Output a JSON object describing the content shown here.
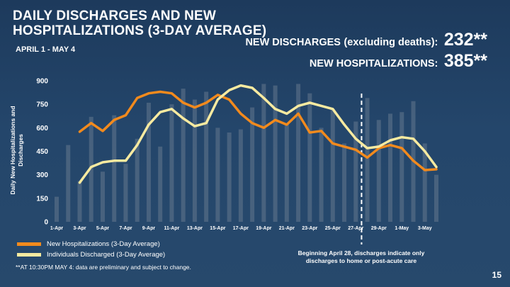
{
  "header": {
    "title": "DAILY DISCHARGES AND NEW HOSPITALIZATIONS (3-DAY AVERAGE)",
    "date_range": "APRIL 1 - MAY 4"
  },
  "stats": {
    "discharges_label": "NEW DISCHARGES",
    "discharges_qualifier": "(excluding deaths):",
    "discharges_value": "232**",
    "hospitalizations_label": "NEW HOSPITALIZATIONS:",
    "hospitalizations_value": "385**"
  },
  "footnote": "**AT 10:30PM MAY 4: data are preliminary and subject to change.",
  "annotation": "Beginning April 28, discharges indicate only discharges to home or post-acute care",
  "page_number": "15",
  "colors": {
    "orange": "#f28a1d",
    "yellow": "#f7eaa0",
    "bars": "#8a96a4"
  },
  "chart_data": {
    "type": "line",
    "title": "DAILY DISCHARGES AND NEW HOSPITALIZATIONS (3-DAY AVERAGE)",
    "xlabel": "",
    "ylabel": "Daily New Hospitalizations and Discharges",
    "ylim": [
      0,
      900
    ],
    "yticks": [
      0,
      150,
      300,
      450,
      600,
      750,
      900
    ],
    "xtick_labels": [
      "1-Apr",
      "3-Apr",
      "5-Apr",
      "7-Apr",
      "9-Apr",
      "11-Apr",
      "13-Apr",
      "15-Apr",
      "17-Apr",
      "19-Apr",
      "21-Apr",
      "23-Apr",
      "25-Apr",
      "27-Apr",
      "29-Apr",
      "1-May",
      "3-May"
    ],
    "x": [
      "1-Apr",
      "2-Apr",
      "3-Apr",
      "4-Apr",
      "5-Apr",
      "6-Apr",
      "7-Apr",
      "8-Apr",
      "9-Apr",
      "10-Apr",
      "11-Apr",
      "12-Apr",
      "13-Apr",
      "14-Apr",
      "15-Apr",
      "16-Apr",
      "17-Apr",
      "18-Apr",
      "19-Apr",
      "20-Apr",
      "21-Apr",
      "22-Apr",
      "23-Apr",
      "24-Apr",
      "25-Apr",
      "26-Apr",
      "27-Apr",
      "28-Apr",
      "29-Apr",
      "30-Apr",
      "1-May",
      "2-May",
      "3-May",
      "4-May"
    ],
    "series": [
      {
        "name": "New Hospitalizations (3-Day Average)",
        "kind": "line",
        "color": "#f28a1d",
        "values": [
          null,
          null,
          575,
          630,
          580,
          650,
          680,
          790,
          820,
          830,
          820,
          760,
          730,
          760,
          810,
          780,
          690,
          630,
          600,
          650,
          620,
          690,
          570,
          580,
          500,
          480,
          460,
          410,
          470,
          490,
          470,
          390,
          330,
          335
        ]
      },
      {
        "name": "Individuals Discharged (3-Day Average)",
        "kind": "line",
        "color": "#f7eaa0",
        "values": [
          null,
          null,
          250,
          350,
          380,
          390,
          390,
          490,
          620,
          700,
          720,
          660,
          610,
          630,
          780,
          840,
          870,
          855,
          790,
          720,
          690,
          740,
          760,
          740,
          720,
          620,
          530,
          470,
          480,
          520,
          540,
          530,
          450,
          350
        ]
      },
      {
        "name": "Daily Values",
        "kind": "bar",
        "color": "#8a96a4",
        "values": [
          160,
          490,
          260,
          670,
          320,
          680,
          370,
          530,
          760,
          480,
          750,
          850,
          780,
          830,
          600,
          570,
          590,
          730,
          880,
          870,
          630,
          880,
          820,
          600,
          720,
          500,
          640,
          790,
          650,
          690,
          700,
          770,
          500,
          300
        ]
      }
    ],
    "vertical_marker": {
      "at": "28-Apr",
      "style": "dashed"
    }
  }
}
